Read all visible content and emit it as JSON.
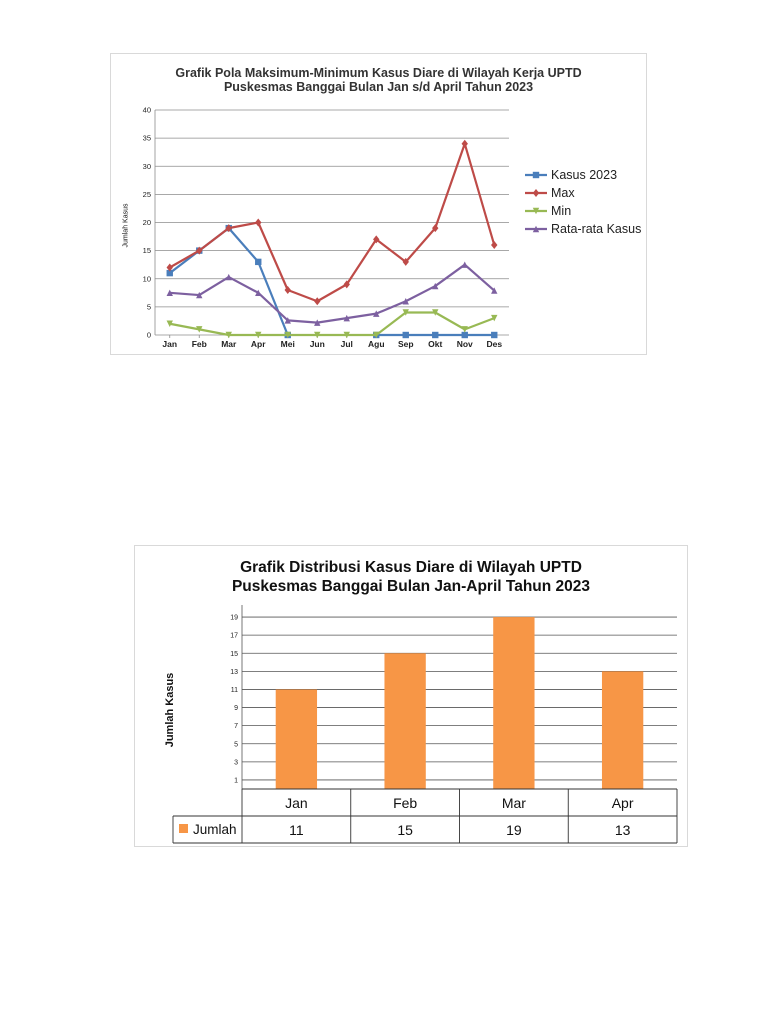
{
  "chart_data": [
    {
      "type": "line",
      "title_lines": [
        "Grafik Pola Maksimum-Minimum Kasus Diare di Wilayah Kerja UPTD",
        "Puskesmas Banggai Bulan Jan s/d April Tahun 2023"
      ],
      "xlabel": "",
      "ylabel": "Jumlah Kasus",
      "categories": [
        "Jan",
        "Feb",
        "Mar",
        "Apr",
        "Mei",
        "Jun",
        "Jul",
        "Agu",
        "Sep",
        "Okt",
        "Nov",
        "Des"
      ],
      "yticks": [
        0,
        5,
        10,
        15,
        20,
        25,
        30,
        35,
        40
      ],
      "ylim": [
        0,
        40
      ],
      "grid": true,
      "legend_position": "right",
      "series": [
        {
          "name": "Kasus 2023",
          "color": "#4a7ebb",
          "marker": "square",
          "values": [
            11,
            15,
            19,
            13,
            0,
            null,
            null,
            0,
            0,
            0,
            0,
            0
          ]
        },
        {
          "name": "Max",
          "color": "#be4b48",
          "marker": "diamond",
          "values": [
            12,
            15,
            19,
            20,
            8,
            6,
            9,
            17,
            13,
            19,
            34,
            16
          ]
        },
        {
          "name": "Min",
          "color": "#98b954",
          "marker": "triangle-down",
          "values": [
            2,
            1,
            0,
            0,
            0,
            0,
            0,
            0,
            4,
            4,
            1,
            3
          ]
        },
        {
          "name": "Rata-rata Kasus",
          "color": "#7d60a0",
          "marker": "triangle-up",
          "values": [
            7.5,
            7.1,
            10.3,
            7.5,
            2.6,
            2.2,
            3.0,
            3.8,
            6.0,
            8.7,
            12.5,
            7.9
          ]
        }
      ]
    },
    {
      "type": "bar",
      "title_lines": [
        "Grafik Distribusi Kasus Diare di Wilayah UPTD",
        "Puskesmas Banggai Bulan Jan-April Tahun 2023"
      ],
      "xlabel": "",
      "ylabel": "Jumlah Kasus",
      "categories": [
        "Jan",
        "Feb",
        "Mar",
        "Apr"
      ],
      "yticks": [
        1,
        3,
        5,
        7,
        9,
        11,
        13,
        15,
        17,
        19
      ],
      "ylim": [
        0,
        20
      ],
      "grid": true,
      "data_table": true,
      "series": [
        {
          "name": "Jumlah",
          "color": "#f79646",
          "values": [
            11,
            15,
            19,
            13
          ]
        }
      ]
    }
  ]
}
